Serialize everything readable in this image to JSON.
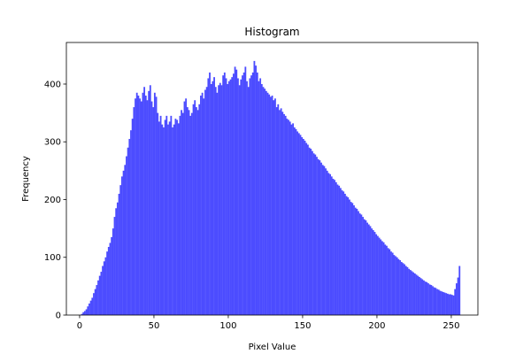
{
  "chart_data": {
    "type": "bar",
    "title": "Histogram",
    "xlabel": "Pixel Value",
    "ylabel": "Frequency",
    "xlim": [
      -8.9,
      267.9
    ],
    "ylim": [
      0,
      472
    ],
    "xticks": [
      0,
      50,
      100,
      150,
      200,
      250
    ],
    "yticks": [
      0,
      100,
      200,
      300,
      400
    ],
    "grid": false,
    "bar_color": "#4C4CFF",
    "bin_start": 0,
    "bin_width": 1,
    "values": [
      0,
      2,
      5,
      7,
      10,
      15,
      20,
      25,
      30,
      38,
      45,
      52,
      60,
      68,
      75,
      85,
      93,
      100,
      110,
      118,
      125,
      135,
      150,
      170,
      185,
      195,
      210,
      225,
      240,
      250,
      260,
      275,
      290,
      305,
      320,
      340,
      360,
      375,
      385,
      380,
      375,
      370,
      385,
      395,
      380,
      372,
      388,
      398,
      370,
      360,
      385,
      378,
      350,
      335,
      345,
      330,
      325,
      338,
      345,
      330,
      335,
      345,
      325,
      330,
      340,
      338,
      332,
      345,
      355,
      350,
      370,
      375,
      360,
      355,
      345,
      350,
      365,
      372,
      360,
      355,
      365,
      380,
      385,
      375,
      390,
      395,
      410,
      420,
      400,
      405,
      412,
      395,
      385,
      398,
      402,
      398,
      415,
      420,
      410,
      400,
      405,
      408,
      412,
      418,
      430,
      425,
      410,
      398,
      408,
      415,
      420,
      430,
      405,
      395,
      410,
      415,
      420,
      440,
      432,
      420,
      405,
      410,
      400,
      395,
      392,
      388,
      385,
      382,
      378,
      380,
      372,
      375,
      360,
      365,
      355,
      358,
      352,
      348,
      345,
      340,
      338,
      335,
      330,
      332,
      325,
      322,
      318,
      315,
      312,
      308,
      305,
      302,
      298,
      295,
      290,
      288,
      284,
      280,
      278,
      274,
      270,
      268,
      264,
      260,
      258,
      254,
      250,
      246,
      244,
      240,
      236,
      234,
      230,
      226,
      224,
      220,
      216,
      214,
      210,
      206,
      204,
      200,
      196,
      194,
      190,
      186,
      184,
      180,
      176,
      174,
      170,
      166,
      164,
      160,
      157,
      154,
      150,
      147,
      144,
      140,
      137,
      134,
      131,
      128,
      126,
      122,
      120,
      116,
      114,
      110,
      108,
      104,
      102,
      100,
      97,
      95,
      92,
      90,
      88,
      85,
      83,
      80,
      78,
      76,
      74,
      72,
      70,
      68,
      66,
      64,
      62,
      60,
      58,
      57,
      55,
      53,
      52,
      50,
      48,
      47,
      45,
      44,
      42,
      41,
      40,
      39,
      38,
      37,
      36,
      36,
      35,
      34,
      45,
      55,
      65,
      85
    ]
  }
}
